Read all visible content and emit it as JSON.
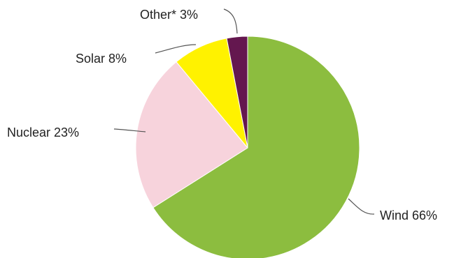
{
  "chart_data": {
    "type": "pie",
    "title": "",
    "slices": [
      {
        "name": "Wind",
        "value": 66,
        "label": "Wind 66%",
        "color": "#8cbd3f"
      },
      {
        "name": "Nuclear",
        "value": 23,
        "label": "Nuclear 23%",
        "color": "#f7d3dc"
      },
      {
        "name": "Solar",
        "value": 8,
        "label": "Solar 8%",
        "color": "#fff200"
      },
      {
        "name": "Other*",
        "value": 3,
        "label": "Other* 3%",
        "color": "#64174f"
      }
    ],
    "legend": "none",
    "labels": "outside-with-leader-lines"
  }
}
